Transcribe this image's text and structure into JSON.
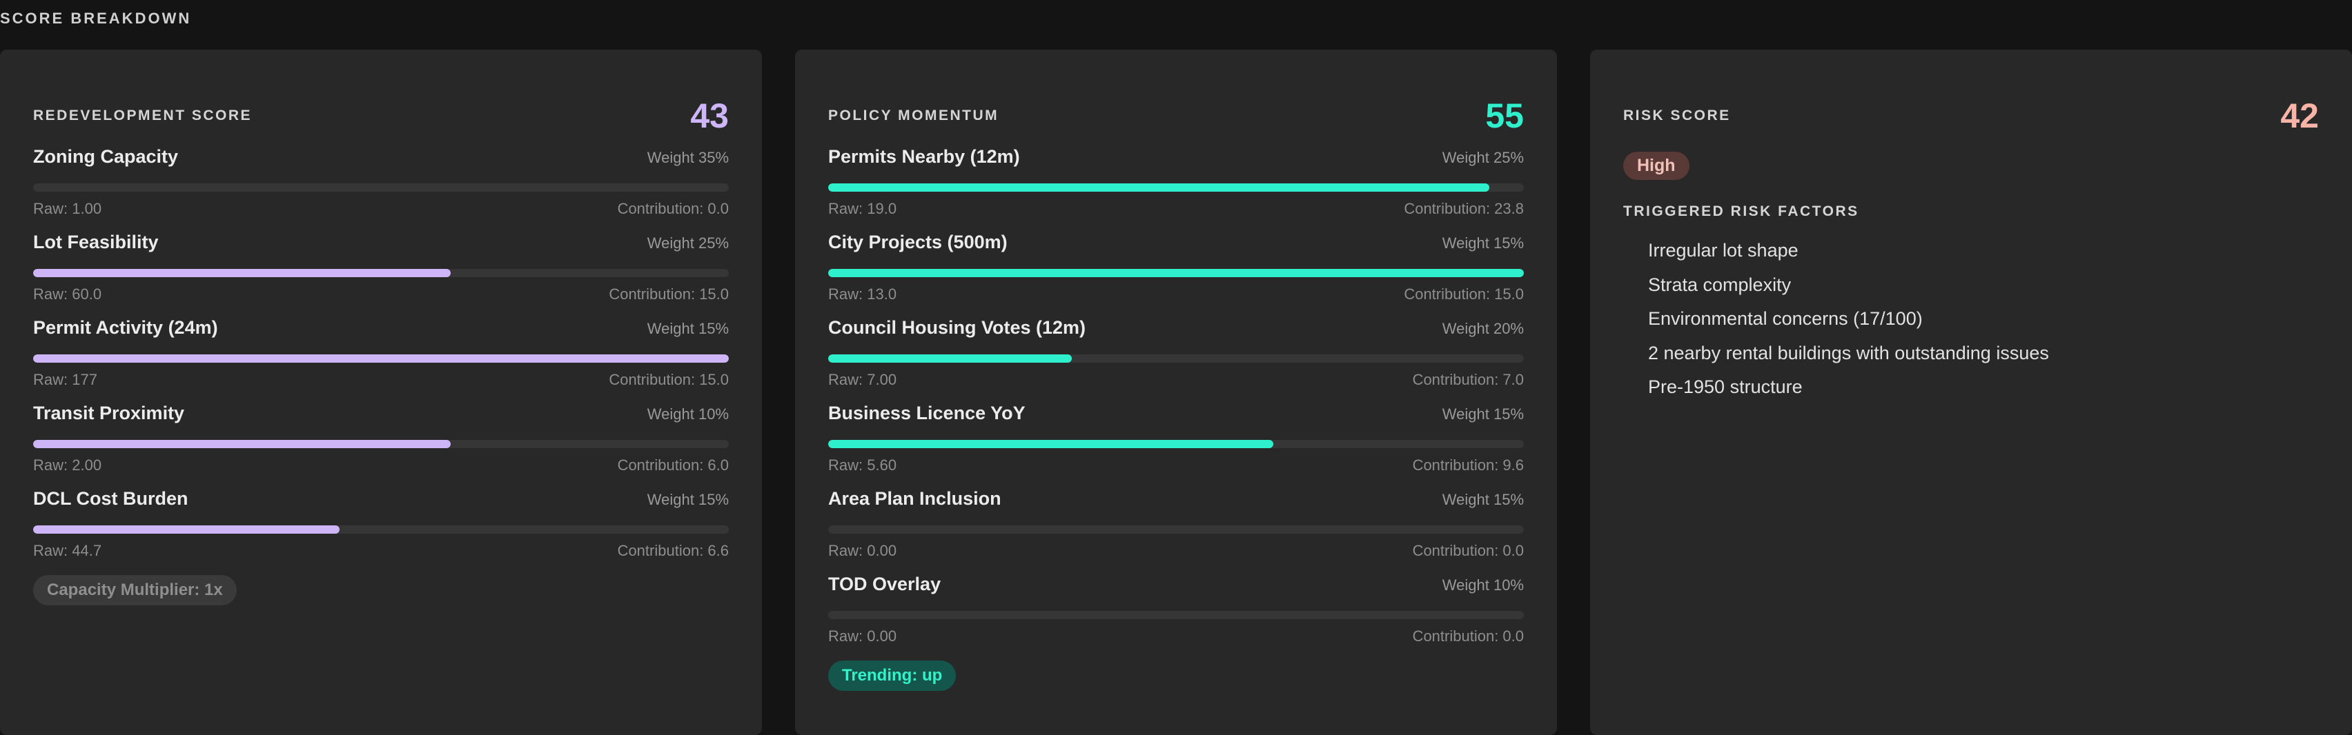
{
  "page": {
    "heading": "SCORE BREAKDOWN"
  },
  "colors": {
    "redevelopment": "#cdb5f7",
    "policy": "#2ef0cc",
    "risk": "#f8b4a6"
  },
  "redevelopment": {
    "title": "REDEVELOPMENT SCORE",
    "score": "43",
    "metrics": [
      {
        "name": "Zoning Capacity",
        "weight": "Weight 35%",
        "raw": "Raw: 1.00",
        "contribution": "Contribution: 0.0",
        "level": 0
      },
      {
        "name": "Lot Feasibility",
        "weight": "Weight 25%",
        "raw": "Raw: 60.0",
        "contribution": "Contribution: 15.0",
        "level": 60
      },
      {
        "name": "Permit Activity (24m)",
        "weight": "Weight 15%",
        "raw": "Raw: 177",
        "contribution": "Contribution: 15.0",
        "level": 100
      },
      {
        "name": "Transit Proximity",
        "weight": "Weight 10%",
        "raw": "Raw: 2.00",
        "contribution": "Contribution: 6.0",
        "level": 60
      },
      {
        "name": "DCL Cost Burden",
        "weight": "Weight 15%",
        "raw": "Raw: 44.7",
        "contribution": "Contribution: 6.6",
        "level": 44
      }
    ],
    "badge": "Capacity Multiplier: 1x"
  },
  "policy": {
    "title": "POLICY MOMENTUM",
    "score": "55",
    "metrics": [
      {
        "name": "Permits Nearby (12m)",
        "weight": "Weight 25%",
        "raw": "Raw: 19.0",
        "contribution": "Contribution: 23.8",
        "level": 95
      },
      {
        "name": "City Projects (500m)",
        "weight": "Weight 15%",
        "raw": "Raw: 13.0",
        "contribution": "Contribution: 15.0",
        "level": 100
      },
      {
        "name": "Council Housing Votes (12m)",
        "weight": "Weight 20%",
        "raw": "Raw: 7.00",
        "contribution": "Contribution: 7.0",
        "level": 35
      },
      {
        "name": "Business Licence YoY",
        "weight": "Weight 15%",
        "raw": "Raw: 5.60",
        "contribution": "Contribution: 9.6",
        "level": 64
      },
      {
        "name": "Area Plan Inclusion",
        "weight": "Weight 15%",
        "raw": "Raw: 0.00",
        "contribution": "Contribution: 0.0",
        "level": 0
      },
      {
        "name": "TOD Overlay",
        "weight": "Weight 10%",
        "raw": "Raw: 0.00",
        "contribution": "Contribution: 0.0",
        "level": 0
      }
    ],
    "badge": "Trending: up"
  },
  "risk": {
    "title": "RISK SCORE",
    "score": "42",
    "level": "High",
    "factors_title": "TRIGGERED RISK FACTORS",
    "factors": [
      "Irregular lot shape",
      "Strata complexity",
      "Environmental concerns (17/100)",
      "2 nearby rental buildings with outstanding issues",
      "Pre-1950 structure"
    ]
  }
}
